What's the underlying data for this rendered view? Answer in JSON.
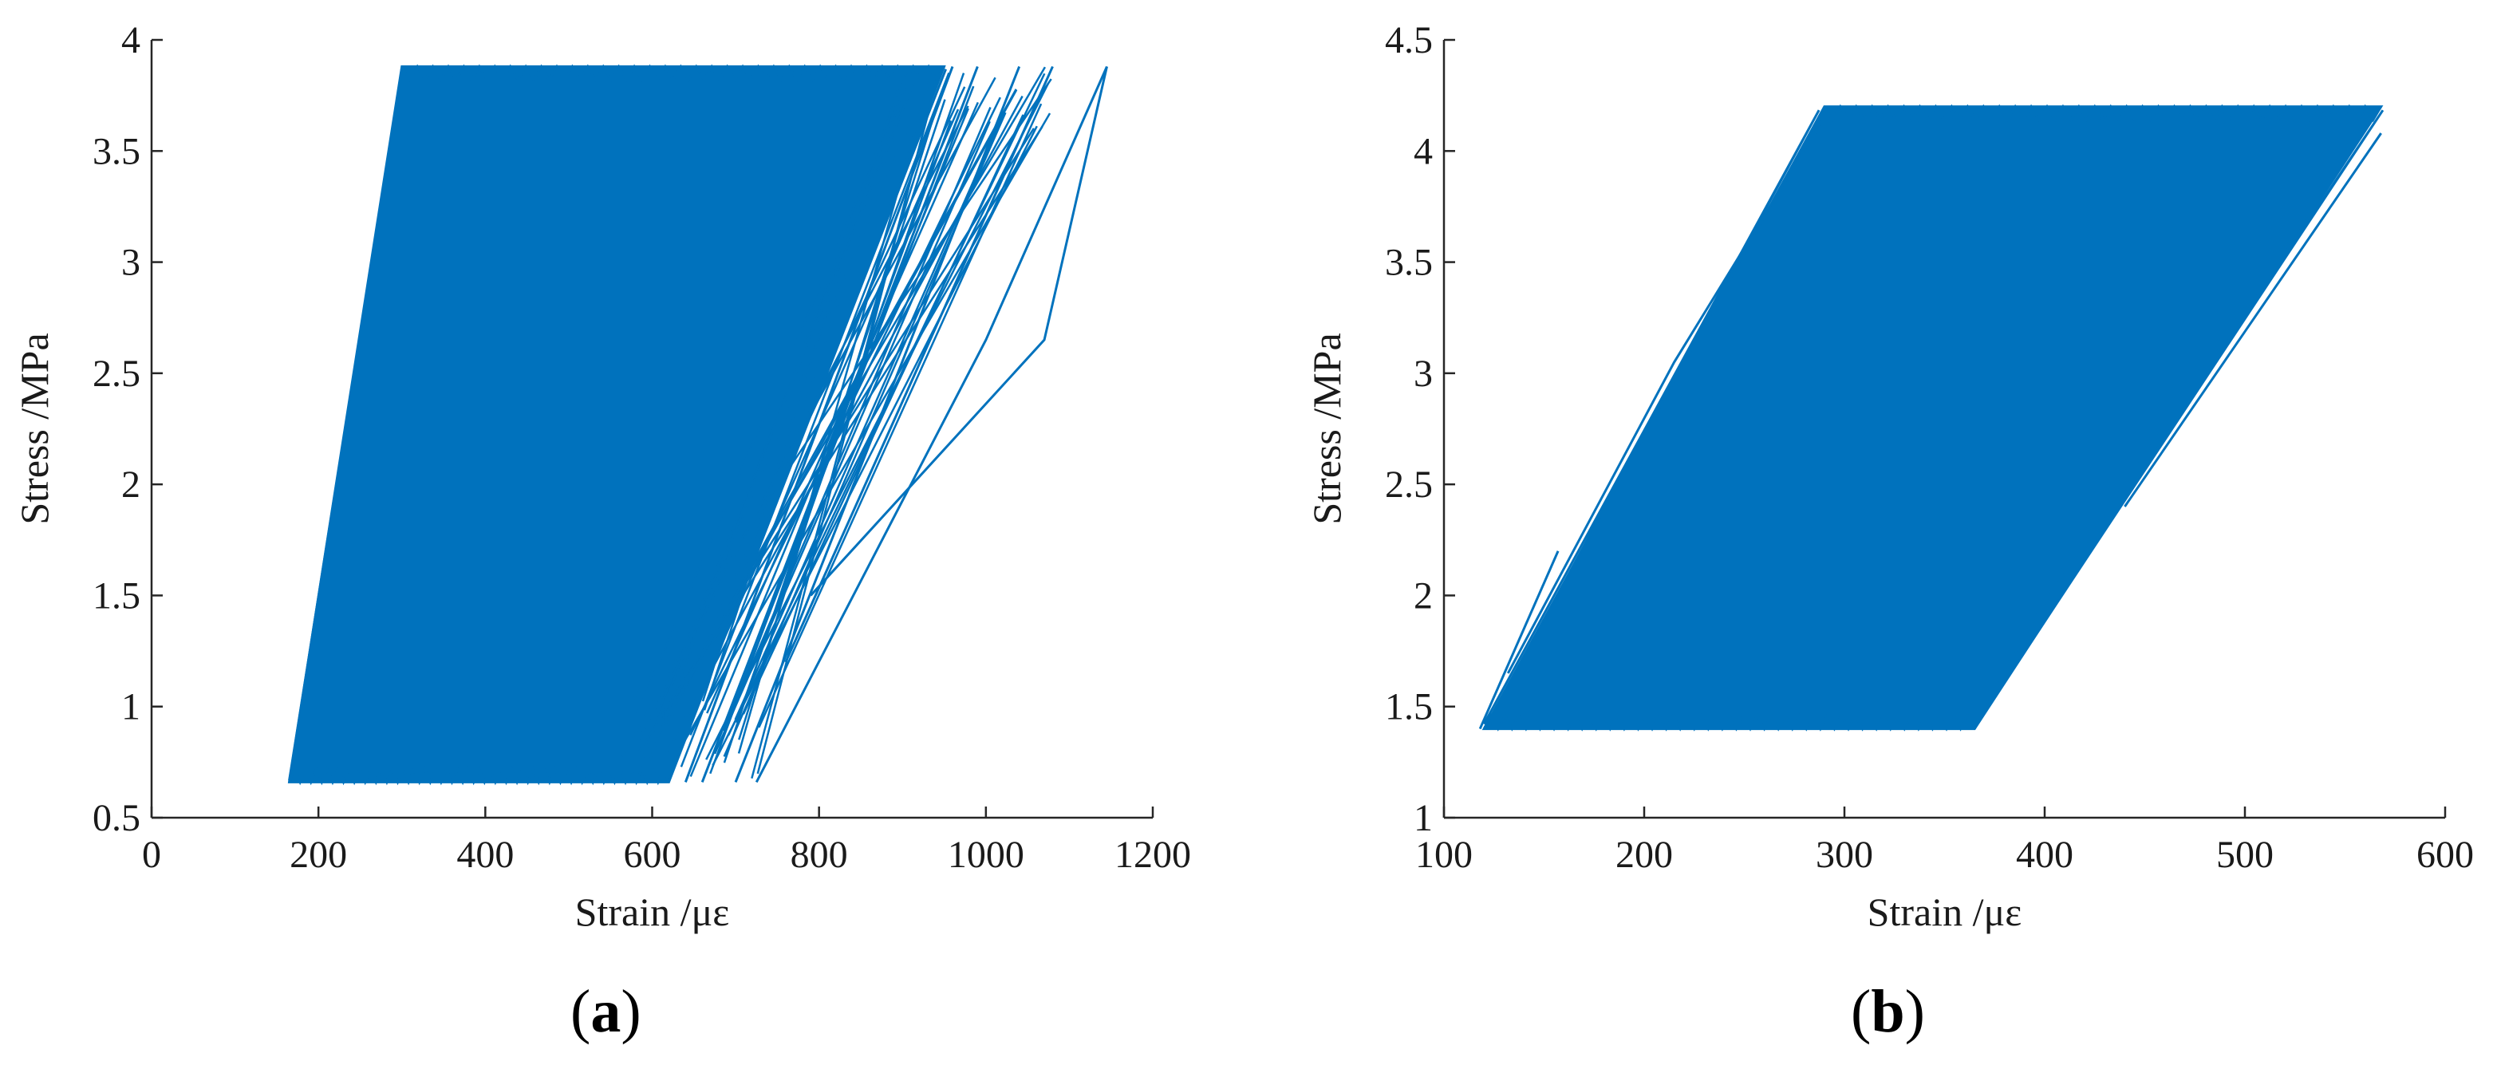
{
  "chart_data": [
    {
      "type": "line",
      "panel_label": "a",
      "xlabel": "Strain /με",
      "ylabel": "Stress /MPa",
      "xlim": [
        0,
        1200
      ],
      "ylim": [
        0.5,
        4
      ],
      "xticks": [
        0,
        200,
        400,
        600,
        800,
        1000,
        1200
      ],
      "yticks": [
        0.5,
        1,
        1.5,
        2,
        2.5,
        3,
        3.5,
        4
      ],
      "grid": false,
      "color": "#0072BD",
      "series": [
        {
          "cycle_band": {
            "stress_min": 0.66,
            "stress_max": 3.88,
            "lower_strain_start": 165,
            "lower_strain_end": 620,
            "upper_strain_start": 300,
            "upper_strain_end": 950
          },
          "tail_cycles": [
            {
              "x": [
                640,
                960
              ],
              "y": [
                0.66,
                3.88
              ]
            },
            {
              "x": [
                660,
                990
              ],
              "y": [
                0.66,
                3.88
              ]
            },
            {
              "x": [
                700,
                1040
              ],
              "y": [
                0.66,
                3.88
              ]
            },
            {
              "x": [
                760,
                1080
              ],
              "y": [
                1.2,
                3.88
              ]
            },
            {
              "x": [
                725,
                1000,
                1145
              ],
              "y": [
                0.66,
                2.65,
                3.88
              ]
            },
            {
              "x": [
                790,
                1070,
                1145
              ],
              "y": [
                1.5,
                2.65,
                3.88
              ]
            }
          ]
        }
      ]
    },
    {
      "type": "line",
      "panel_label": "b",
      "xlabel": "Strain /με",
      "ylabel": "Stress /MPa",
      "xlim": [
        100,
        600
      ],
      "ylim": [
        1,
        4.5
      ],
      "xticks": [
        100,
        200,
        300,
        400,
        500,
        600
      ],
      "yticks": [
        1,
        1.5,
        2,
        2.5,
        3,
        3.5,
        4,
        4.5
      ],
      "grid": false,
      "color": "#0072BD",
      "series": [
        {
          "cycle_band": {
            "stress_min": 1.4,
            "stress_max": 4.2,
            "lower_strain_start": 120,
            "lower_strain_end": 365,
            "upper_strain_start": 290,
            "upper_strain_end": 568
          },
          "outliers": [
            {
              "x": [
                118,
                157
              ],
              "y": [
                1.4,
                2.2
              ]
            },
            {
              "x": [
                132,
                215,
                292
              ],
              "y": [
                1.65,
                3.05,
                4.18
              ]
            },
            {
              "x": [
                365,
                395,
                568
              ],
              "y": [
                1.4,
                1.9,
                4.2
              ]
            },
            {
              "x": [
                440,
                568
              ],
              "y": [
                2.4,
                4.08
              ]
            }
          ]
        }
      ]
    }
  ]
}
